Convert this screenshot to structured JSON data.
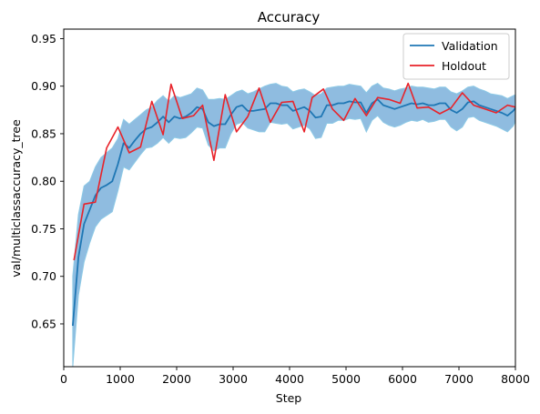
{
  "chart_data": {
    "type": "line",
    "title": "Accuracy",
    "xlabel": "Step",
    "ylabel": "val/multiclassaccuracy_tree",
    "xlim": [
      0,
      8000
    ],
    "ylim": [
      0.605,
      0.96
    ],
    "xticks": [
      0,
      1000,
      2000,
      3000,
      4000,
      5000,
      6000,
      7000,
      8000
    ],
    "xtick_labels": [
      "0",
      "1000",
      "2000",
      "3000",
      "4000",
      "5000",
      "6000",
      "7000",
      "8000"
    ],
    "yticks": [
      0.65,
      0.7,
      0.75,
      0.8,
      0.85,
      0.9,
      0.95
    ],
    "ytick_labels": [
      "0.65",
      "0.70",
      "0.75",
      "0.80",
      "0.85",
      "0.90",
      "0.95"
    ],
    "grid": false,
    "legend_position": "top-right",
    "colors": {
      "validation": "#1f77b4",
      "band": "#6aa6d6",
      "holdout": "#e8232a"
    },
    "series": [
      {
        "name": "Validation",
        "color": "#1f77b4",
        "x": [
          160,
          260,
          360,
          460,
          560,
          660,
          760,
          860,
          960,
          1060,
          1160,
          1260,
          1360,
          1460,
          1560,
          1660,
          1760,
          1860,
          1960,
          2060,
          2160,
          2260,
          2360,
          2460,
          2560,
          2660,
          2760,
          2860,
          2960,
          3060,
          3160,
          3260,
          3360,
          3460,
          3560,
          3660,
          3760,
          3860,
          3960,
          4060,
          4160,
          4260,
          4360,
          4460,
          4560,
          4660,
          4760,
          4860,
          4960,
          5060,
          5160,
          5260,
          5360,
          5460,
          5560,
          5660,
          5760,
          5860,
          5960,
          6060,
          6160,
          6260,
          6360,
          6460,
          6560,
          6660,
          6760,
          6860,
          6960,
          7060,
          7160,
          7260,
          7360,
          7460,
          7560,
          7660,
          7760,
          7860,
          7960,
          8000
        ],
        "y": [
          0.648,
          0.72,
          0.755,
          0.77,
          0.785,
          0.793,
          0.796,
          0.8,
          0.818,
          0.84,
          0.835,
          0.843,
          0.85,
          0.855,
          0.857,
          0.862,
          0.868,
          0.862,
          0.868,
          0.866,
          0.868,
          0.872,
          0.878,
          0.876,
          0.862,
          0.858,
          0.86,
          0.86,
          0.87,
          0.878,
          0.88,
          0.874,
          0.874,
          0.875,
          0.876,
          0.882,
          0.882,
          0.88,
          0.88,
          0.874,
          0.876,
          0.878,
          0.874,
          0.867,
          0.868,
          0.88,
          0.88,
          0.882,
          0.882,
          0.884,
          0.883,
          0.883,
          0.872,
          0.882,
          0.886,
          0.88,
          0.878,
          0.876,
          0.878,
          0.88,
          0.882,
          0.881,
          0.882,
          0.88,
          0.88,
          0.882,
          0.882,
          0.875,
          0.872,
          0.876,
          0.883,
          0.884,
          0.88,
          0.878,
          0.876,
          0.874,
          0.872,
          0.869,
          0.874,
          0.877
        ]
      },
      {
        "name": "Holdout",
        "color": "#e8232a",
        "x": [
          180,
          360,
          560,
          760,
          960,
          1160,
          1360,
          1560,
          1760,
          1900,
          2100,
          2300,
          2460,
          2660,
          2860,
          3060,
          3260,
          3460,
          3660,
          3860,
          4060,
          4260,
          4400,
          4600,
          4760,
          4960,
          5160,
          5360,
          5560,
          5760,
          5960,
          6100,
          6260,
          6460,
          6660,
          6860,
          7060,
          7260,
          7460,
          7660,
          7860,
          8000
        ],
        "y": [
          0.717,
          0.776,
          0.778,
          0.835,
          0.857,
          0.83,
          0.836,
          0.884,
          0.849,
          0.902,
          0.866,
          0.869,
          0.88,
          0.822,
          0.891,
          0.852,
          0.868,
          0.898,
          0.862,
          0.883,
          0.884,
          0.852,
          0.888,
          0.897,
          0.876,
          0.864,
          0.887,
          0.869,
          0.888,
          0.886,
          0.882,
          0.903,
          0.877,
          0.878,
          0.871,
          0.877,
          0.893,
          0.88,
          0.876,
          0.872,
          0.88,
          0.878
        ]
      }
    ],
    "band": {
      "label": "",
      "x": [
        160,
        260,
        360,
        460,
        560,
        660,
        760,
        860,
        960,
        1060,
        1160,
        1260,
        1360,
        1460,
        1560,
        1660,
        1760,
        1860,
        1960,
        2060,
        2160,
        2260,
        2360,
        2460,
        2560,
        2660,
        2760,
        2860,
        2960,
        3060,
        3160,
        3260,
        3360,
        3460,
        3560,
        3660,
        3760,
        3860,
        3960,
        4060,
        4160,
        4260,
        4360,
        4460,
        4560,
        4660,
        4760,
        4860,
        4960,
        5060,
        5160,
        5260,
        5360,
        5460,
        5560,
        5660,
        5760,
        5860,
        5960,
        6060,
        6160,
        6260,
        6360,
        6460,
        6560,
        6660,
        6760,
        6860,
        6960,
        7060,
        7160,
        7260,
        7360,
        7460,
        7560,
        7660,
        7760,
        7860,
        7960,
        8000
      ],
      "upper": [
        0.7,
        0.765,
        0.795,
        0.8,
        0.815,
        0.825,
        0.83,
        0.835,
        0.845,
        0.865,
        0.86,
        0.865,
        0.87,
        0.875,
        0.878,
        0.885,
        0.89,
        0.884,
        0.89,
        0.888,
        0.89,
        0.892,
        0.898,
        0.896,
        0.886,
        0.886,
        0.887,
        0.886,
        0.89,
        0.894,
        0.896,
        0.892,
        0.894,
        0.897,
        0.9,
        0.902,
        0.903,
        0.9,
        0.899,
        0.894,
        0.896,
        0.897,
        0.894,
        0.89,
        0.892,
        0.898,
        0.899,
        0.9,
        0.9,
        0.902,
        0.901,
        0.9,
        0.893,
        0.9,
        0.903,
        0.898,
        0.897,
        0.895,
        0.897,
        0.898,
        0.9,
        0.899,
        0.899,
        0.898,
        0.897,
        0.899,
        0.899,
        0.894,
        0.892,
        0.895,
        0.899,
        0.9,
        0.897,
        0.895,
        0.892,
        0.891,
        0.89,
        0.887,
        0.89,
        0.891
      ],
      "lower": [
        0.605,
        0.68,
        0.715,
        0.735,
        0.752,
        0.76,
        0.764,
        0.768,
        0.79,
        0.815,
        0.812,
        0.82,
        0.828,
        0.835,
        0.836,
        0.84,
        0.846,
        0.84,
        0.846,
        0.845,
        0.846,
        0.851,
        0.857,
        0.856,
        0.838,
        0.832,
        0.835,
        0.835,
        0.85,
        0.86,
        0.862,
        0.856,
        0.854,
        0.852,
        0.852,
        0.862,
        0.861,
        0.86,
        0.861,
        0.855,
        0.857,
        0.859,
        0.855,
        0.845,
        0.846,
        0.861,
        0.861,
        0.864,
        0.864,
        0.866,
        0.865,
        0.866,
        0.852,
        0.864,
        0.869,
        0.862,
        0.859,
        0.857,
        0.859,
        0.862,
        0.864,
        0.863,
        0.865,
        0.862,
        0.863,
        0.865,
        0.865,
        0.857,
        0.853,
        0.857,
        0.867,
        0.868,
        0.864,
        0.862,
        0.86,
        0.858,
        0.855,
        0.852,
        0.858,
        0.863
      ]
    }
  }
}
